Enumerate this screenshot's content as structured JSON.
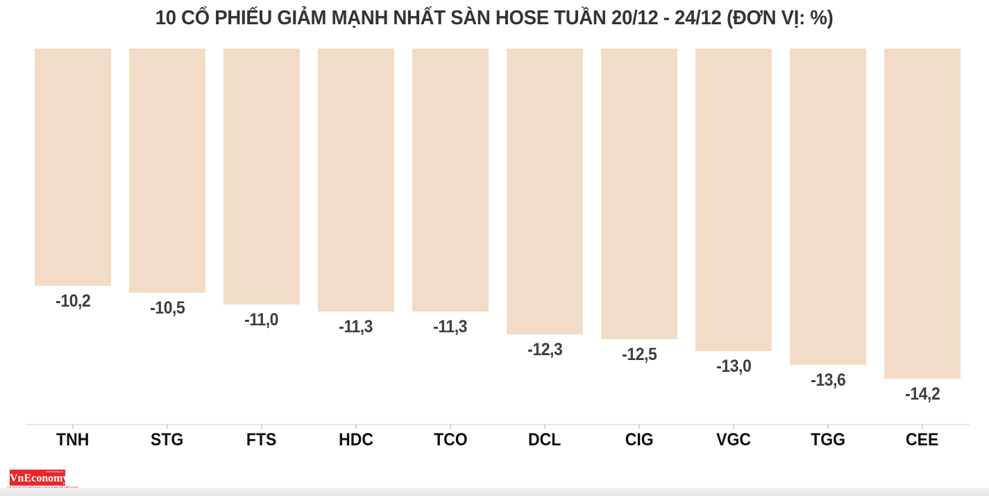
{
  "title": "10 CỔ PHIẾU GIẢM MẠNH NHẤT SÀN HOSE TUẦN 20/12 - 24/12 (ĐƠN VỊ: %)",
  "chart_data": {
    "type": "bar",
    "title": "10 CỔ PHIẾU GIẢM MẠNH NHẤT SÀN HOSE TUẦN 20/12 - 24/12 (ĐƠN VỊ: %)",
    "categories": [
      "TNH",
      "STG",
      "FTS",
      "HDC",
      "TCO",
      "DCL",
      "CIG",
      "VGC",
      "TGG",
      "CEE"
    ],
    "values": [
      -10.2,
      -10.5,
      -11.0,
      -11.3,
      -11.3,
      -12.3,
      -12.5,
      -13.0,
      -13.6,
      -14.2
    ],
    "value_labels": [
      "-10,2",
      "-10,5",
      "-11,0",
      "-11,3",
      "-11,3",
      "-12,3",
      "-12,5",
      "-13,0",
      "-13,6",
      "-14,2"
    ],
    "xlabel": "",
    "ylabel": "",
    "unit": "%",
    "ylim": [
      -16,
      0
    ],
    "grid": false,
    "legend": "none",
    "bar_color": "#f2dcc7",
    "value_label_color": "#3d3d3d",
    "category_label_color": "#0d0d0d",
    "axis_color": "#e7e7e7"
  },
  "logo": {
    "name": "VnEconomy",
    "tagline_top": "vneconomy.vn",
    "tagline_bottom": "CƠ QUAN CỦA HỘI KHOA HỌC KINH TẾ VIỆT NAM",
    "bg_color": "#e9262b",
    "text_color": "#ffffff"
  }
}
